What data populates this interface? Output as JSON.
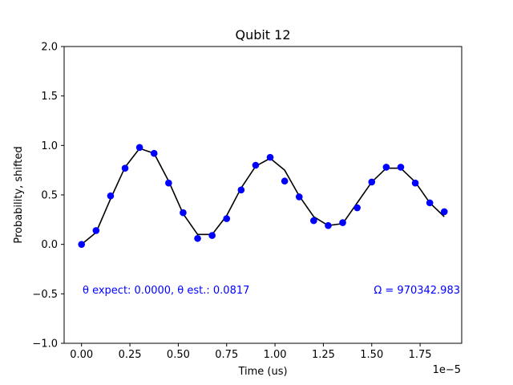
{
  "chart_data": {
    "type": "line",
    "title": "Qubit 12",
    "xlabel": "Time (us)",
    "ylabel": "Probability, shifted",
    "x_offset_label": "1e−5",
    "xlim": [
      -9e-07,
      1.965e-05
    ],
    "ylim": [
      -1.0,
      2.0
    ],
    "x_ticks": [
      0,
      2.5e-06,
      5e-06,
      7.5e-06,
      1e-05,
      1.25e-05,
      1.5e-05,
      1.75e-05
    ],
    "x_tick_labels": [
      "0.00",
      "0.25",
      "0.50",
      "0.75",
      "1.00",
      "1.25",
      "1.50",
      "1.75"
    ],
    "y_ticks": [
      -1.0,
      -0.5,
      0.0,
      0.5,
      1.0,
      1.5,
      2.0
    ],
    "y_tick_labels": [
      "−1.0",
      "−0.5",
      "0.0",
      "0.5",
      "1.0",
      "1.5",
      "2.0"
    ],
    "grid": false,
    "series": [
      {
        "kind": "scatter",
        "color": "#0000ff",
        "x": [
          0,
          7.5e-07,
          1.5e-06,
          2.25e-06,
          3e-06,
          3.75e-06,
          4.5e-06,
          5.25e-06,
          6e-06,
          6.75e-06,
          7.5e-06,
          8.25e-06,
          9e-06,
          9.75e-06,
          1.05e-05,
          1.125e-05,
          1.2e-05,
          1.275e-05,
          1.35e-05,
          1.425e-05,
          1.5e-05,
          1.575e-05,
          1.65e-05,
          1.725e-05,
          1.8e-05,
          1.875e-05
        ],
        "y": [
          0.0,
          0.14,
          0.49,
          0.77,
          0.98,
          0.92,
          0.62,
          0.32,
          0.06,
          0.09,
          0.26,
          0.55,
          0.8,
          0.88,
          0.64,
          0.48,
          0.24,
          0.19,
          0.22,
          0.37,
          0.63,
          0.78,
          0.78,
          0.62,
          0.42,
          0.33
        ]
      },
      {
        "kind": "line",
        "color": "#000000",
        "x": [
          0,
          7.5e-07,
          1.5e-06,
          2.25e-06,
          3e-06,
          3.75e-06,
          4.5e-06,
          5.25e-06,
          6e-06,
          6.75e-06,
          7.5e-06,
          8.25e-06,
          9e-06,
          9.75e-06,
          1.05e-05,
          1.125e-05,
          1.2e-05,
          1.275e-05,
          1.35e-05,
          1.425e-05,
          1.5e-05,
          1.575e-05,
          1.65e-05,
          1.725e-05,
          1.8e-05,
          1.875e-05
        ],
        "y": [
          0.0,
          0.12,
          0.46,
          0.78,
          0.97,
          0.92,
          0.64,
          0.31,
          0.1,
          0.1,
          0.29,
          0.57,
          0.79,
          0.87,
          0.75,
          0.49,
          0.28,
          0.19,
          0.21,
          0.42,
          0.63,
          0.77,
          0.77,
          0.63,
          0.42,
          0.28
        ]
      }
    ],
    "annotations": {
      "theta_text": "θ expect: 0.0000, θ est.: 0.0817",
      "omega_text": "Ω = 970342.983",
      "color": "#0000ff"
    }
  }
}
